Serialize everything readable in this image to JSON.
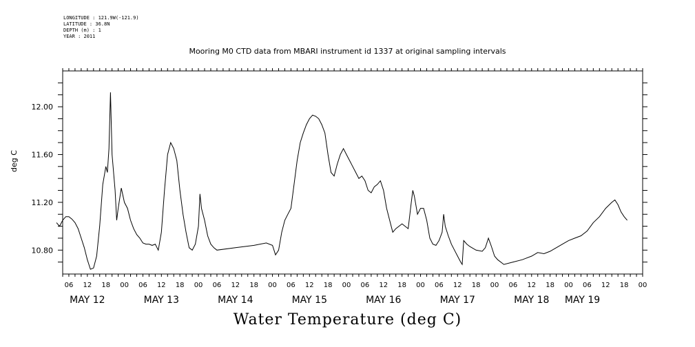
{
  "header": {
    "longitude": "LONGITUDE : 121.9W(-121.9)",
    "latitude": "LATITUDE : 36.8N",
    "depth": "DEPTH (m) : 1",
    "year": "YEAR : 2011"
  },
  "chart_data": {
    "type": "line",
    "title": "Mooring M0 CTD data from MBARI instrument id 1337 at original sampling intervals",
    "xlabel": "Water Temperature (deg C)",
    "ylabel": "deg C",
    "ylim": [
      10.6,
      12.3
    ],
    "yticks": [
      "10.80",
      "11.20",
      "11.60",
      "12.00"
    ],
    "xlim_hours": [
      0,
      168
    ],
    "x_tick_hours": [
      "06",
      "12",
      "18",
      "00",
      "06",
      "12",
      "18",
      "00",
      "06",
      "12",
      "18",
      "00",
      "06",
      "12",
      "18",
      "00",
      "06",
      "12",
      "18",
      "00",
      "06",
      "12",
      "18",
      "00",
      "06",
      "12",
      "18",
      "00",
      "06",
      "12",
      "18",
      "00"
    ],
    "day_labels": [
      "MAY 12",
      "MAY 13",
      "MAY 14",
      "MAY 15",
      "MAY 16",
      "MAY 17",
      "MAY 18",
      "MAY 19"
    ],
    "grid": false,
    "series": [
      {
        "points_hours_since_may12_0000": [
          [
            2,
            11.03
          ],
          [
            3,
            11.0
          ],
          [
            4,
            11.05
          ],
          [
            5,
            11.08
          ],
          [
            6,
            11.08
          ],
          [
            7,
            11.06
          ],
          [
            8,
            11.03
          ],
          [
            9,
            10.98
          ],
          [
            10,
            10.9
          ],
          [
            11,
            10.82
          ],
          [
            12,
            10.72
          ],
          [
            13,
            10.64
          ],
          [
            14,
            10.65
          ],
          [
            15,
            10.75
          ],
          [
            16,
            11.0
          ],
          [
            17,
            11.35
          ],
          [
            18,
            11.5
          ],
          [
            18.5,
            11.45
          ],
          [
            19,
            11.65
          ],
          [
            19.5,
            12.12
          ],
          [
            20,
            11.6
          ],
          [
            21,
            11.3
          ],
          [
            21.5,
            11.05
          ],
          [
            22,
            11.15
          ],
          [
            23,
            11.32
          ],
          [
            24,
            11.2
          ],
          [
            25,
            11.15
          ],
          [
            26,
            11.05
          ],
          [
            27,
            10.98
          ],
          [
            28,
            10.93
          ],
          [
            29,
            10.9
          ],
          [
            30,
            10.86
          ],
          [
            31,
            10.85
          ],
          [
            32,
            10.85
          ],
          [
            33,
            10.84
          ],
          [
            34,
            10.85
          ],
          [
            35,
            10.8
          ],
          [
            36,
            10.95
          ],
          [
            37,
            11.3
          ],
          [
            38,
            11.6
          ],
          [
            39,
            11.7
          ],
          [
            40,
            11.65
          ],
          [
            41,
            11.55
          ],
          [
            42,
            11.3
          ],
          [
            43,
            11.1
          ],
          [
            44,
            10.95
          ],
          [
            45,
            10.82
          ],
          [
            46,
            10.8
          ],
          [
            47,
            10.85
          ],
          [
            48,
            11.0
          ],
          [
            48.5,
            11.27
          ],
          [
            49,
            11.15
          ],
          [
            50,
            11.05
          ],
          [
            51,
            10.92
          ],
          [
            52,
            10.85
          ],
          [
            53,
            10.82
          ],
          [
            54,
            10.8
          ],
          [
            60,
            10.82
          ],
          [
            66,
            10.84
          ],
          [
            70,
            10.86
          ],
          [
            72,
            10.84
          ],
          [
            73,
            10.76
          ],
          [
            74,
            10.8
          ],
          [
            75,
            10.95
          ],
          [
            76,
            11.05
          ],
          [
            77,
            11.1
          ],
          [
            78,
            11.15
          ],
          [
            79,
            11.35
          ],
          [
            80,
            11.55
          ],
          [
            81,
            11.7
          ],
          [
            82,
            11.78
          ],
          [
            83,
            11.85
          ],
          [
            84,
            11.9
          ],
          [
            85,
            11.93
          ],
          [
            86,
            11.92
          ],
          [
            87,
            11.9
          ],
          [
            88,
            11.85
          ],
          [
            89,
            11.78
          ],
          [
            90,
            11.6
          ],
          [
            91,
            11.45
          ],
          [
            92,
            11.42
          ],
          [
            93,
            11.52
          ],
          [
            94,
            11.6
          ],
          [
            95,
            11.65
          ],
          [
            96,
            11.6
          ],
          [
            97,
            11.55
          ],
          [
            98,
            11.5
          ],
          [
            99,
            11.45
          ],
          [
            100,
            11.4
          ],
          [
            101,
            11.42
          ],
          [
            102,
            11.38
          ],
          [
            103,
            11.3
          ],
          [
            104,
            11.28
          ],
          [
            105,
            11.33
          ],
          [
            106,
            11.35
          ],
          [
            107,
            11.38
          ],
          [
            108,
            11.3
          ],
          [
            109,
            11.15
          ],
          [
            110,
            11.05
          ],
          [
            111,
            10.95
          ],
          [
            112,
            10.98
          ],
          [
            113,
            11.0
          ],
          [
            114,
            11.02
          ],
          [
            115,
            11.0
          ],
          [
            116,
            10.98
          ],
          [
            117,
            11.2
          ],
          [
            117.5,
            11.3
          ],
          [
            118,
            11.25
          ],
          [
            119,
            11.1
          ],
          [
            120,
            11.15
          ],
          [
            121,
            11.15
          ],
          [
            122,
            11.05
          ],
          [
            123,
            10.9
          ],
          [
            124,
            10.85
          ],
          [
            125,
            10.84
          ],
          [
            126,
            10.88
          ],
          [
            127,
            10.95
          ],
          [
            127.5,
            11.1
          ],
          [
            128,
            11.0
          ],
          [
            129,
            10.92
          ],
          [
            130,
            10.85
          ],
          [
            131,
            10.8
          ],
          [
            132,
            10.75
          ],
          [
            133,
            10.7
          ],
          [
            133.5,
            10.68
          ],
          [
            134,
            10.88
          ],
          [
            135,
            10.85
          ],
          [
            136,
            10.83
          ],
          [
            138,
            10.8
          ],
          [
            140,
            10.79
          ],
          [
            141,
            10.82
          ],
          [
            142,
            10.9
          ],
          [
            143,
            10.83
          ],
          [
            144,
            10.75
          ],
          [
            145,
            10.72
          ],
          [
            147,
            10.68
          ],
          [
            150,
            10.7
          ],
          [
            153,
            10.72
          ],
          [
            156,
            10.75
          ],
          [
            158,
            10.78
          ],
          [
            160,
            10.77
          ],
          [
            162,
            10.79
          ],
          [
            164,
            10.82
          ],
          [
            166,
            10.85
          ],
          [
            168,
            10.88
          ],
          [
            170,
            10.9
          ],
          [
            172,
            10.92
          ],
          [
            174,
            10.96
          ],
          [
            176,
            11.03
          ],
          [
            178,
            11.08
          ],
          [
            180,
            11.15
          ],
          [
            182,
            11.2
          ],
          [
            183,
            11.22
          ],
          [
            184,
            11.18
          ],
          [
            185,
            11.12
          ],
          [
            186,
            11.08
          ],
          [
            187,
            11.05
          ]
        ]
      }
    ]
  }
}
